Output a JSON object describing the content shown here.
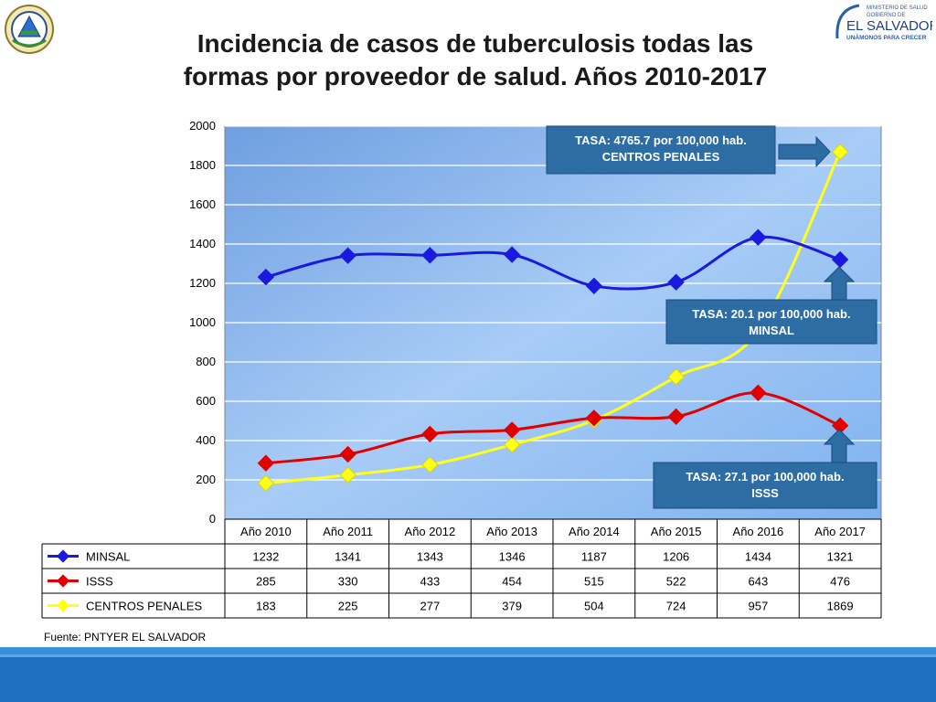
{
  "title_lines": [
    "Incidencia de casos de tuberculosis todas las",
    "formas por proveedor de salud. Años 2010-2017"
  ],
  "logo": {
    "ministry_text": "MINISTERIO DE SALUD",
    "gobierno_text": "GOBIERNO DE",
    "country_text": "EL SALVADOR",
    "slogan_text": "UNÁMONOS PARA CRECER"
  },
  "source": "Fuente: PNTYER EL SALVADOR",
  "colors": {
    "minsal": "#1a1adf",
    "isss": "#e00000",
    "centros": "#ffff1a",
    "callout_bg": "#2e6da4",
    "footer_dark": "#1f4e8c",
    "footer_light": "#3a8fd9"
  },
  "callouts": [
    {
      "lines": [
        "TASA: 4765.7 por 100,000 hab.",
        "CENTROS PENALES"
      ]
    },
    {
      "lines": [
        "TASA: 20.1 por 100,000 hab.",
        "MINSAL"
      ]
    },
    {
      "lines": [
        "TASA: 27.1 por 100,000 hab.",
        "ISSS"
      ]
    }
  ],
  "chart_data": {
    "type": "line",
    "title": "Incidencia de casos de tuberculosis todas las formas por proveedor de salud. Años 2010-2017",
    "categories": [
      "Año 2010",
      "Año 2011",
      "Año 2012",
      "Año 2013",
      "Año 2014",
      "Año 2015",
      "Año 2016",
      "Año 2017"
    ],
    "ylim": [
      0,
      2000
    ],
    "yticks": [
      0,
      200,
      400,
      600,
      800,
      1000,
      1200,
      1400,
      1600,
      1800,
      2000
    ],
    "grid": true,
    "legend": "data table below chart",
    "series": [
      {
        "name": "MINSAL",
        "color": "#1a1adf",
        "values": [
          1232,
          1341,
          1343,
          1346,
          1187,
          1206,
          1434,
          1321
        ]
      },
      {
        "name": "ISSS",
        "color": "#e00000",
        "values": [
          285,
          330,
          433,
          454,
          515,
          522,
          643,
          476
        ]
      },
      {
        "name": "CENTROS PENALES",
        "color": "#ffff1a",
        "values": [
          183,
          225,
          277,
          379,
          504,
          724,
          957,
          1869
        ]
      }
    ]
  }
}
